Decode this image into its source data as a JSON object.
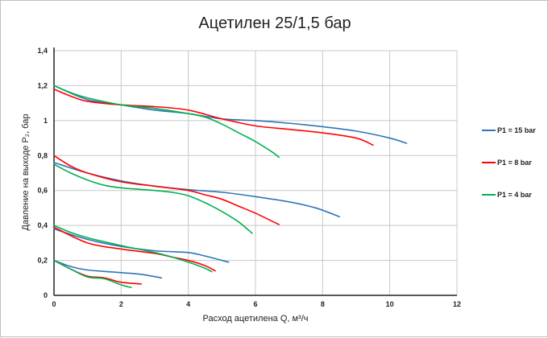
{
  "chart_data": {
    "type": "line",
    "title": "Ацетилен 25/1,5 бар",
    "xlabel": "Расход ацетилена Q, м³/ч",
    "ylabel": "Давление на выходе P₂, бар",
    "xlim": [
      0,
      12
    ],
    "ylim": [
      0,
      1.4
    ],
    "x_ticks": [
      "0",
      "2",
      "4",
      "6",
      "8",
      "10",
      "12"
    ],
    "y_ticks": [
      "0",
      "0,2",
      "0,4",
      "0,6",
      "0,8",
      "1",
      "1,2",
      "1,4"
    ],
    "grid": true,
    "legend_position": "right",
    "series": [
      {
        "name": "P1 = 15 bar",
        "color": "#2e75b6",
        "curves": [
          [
            [
              0,
              1.2
            ],
            [
              1,
              1.12
            ],
            [
              2,
              1.09
            ],
            [
              3,
              1.06
            ],
            [
              4,
              1.04
            ],
            [
              5,
              1.01
            ],
            [
              6,
              1.0
            ],
            [
              7,
              0.985
            ],
            [
              8,
              0.965
            ],
            [
              9,
              0.94
            ],
            [
              10,
              0.9
            ],
            [
              10.5,
              0.87
            ]
          ],
          [
            [
              0,
              0.76
            ],
            [
              1,
              0.7
            ],
            [
              2,
              0.655
            ],
            [
              3,
              0.625
            ],
            [
              4,
              0.605
            ],
            [
              5,
              0.59
            ],
            [
              6,
              0.565
            ],
            [
              7,
              0.535
            ],
            [
              7.8,
              0.5
            ],
            [
              8.5,
              0.45
            ]
          ],
          [
            [
              0,
              0.38
            ],
            [
              1,
              0.32
            ],
            [
              2,
              0.28
            ],
            [
              3,
              0.255
            ],
            [
              4,
              0.245
            ],
            [
              4.5,
              0.225
            ],
            [
              5.2,
              0.19
            ]
          ],
          [
            [
              0,
              0.2
            ],
            [
              0.5,
              0.165
            ],
            [
              1,
              0.145
            ],
            [
              2,
              0.13
            ],
            [
              2.6,
              0.12
            ],
            [
              3.2,
              0.1
            ]
          ]
        ]
      },
      {
        "name": "P1 = 8 bar",
        "color": "#ff0000",
        "curves": [
          [
            [
              0,
              1.18
            ],
            [
              0.5,
              1.14
            ],
            [
              1,
              1.11
            ],
            [
              2,
              1.09
            ],
            [
              3,
              1.08
            ],
            [
              4,
              1.06
            ],
            [
              5,
              1.01
            ],
            [
              6,
              0.97
            ],
            [
              7,
              0.95
            ],
            [
              8,
              0.93
            ],
            [
              9,
              0.9
            ],
            [
              9.5,
              0.86
            ]
          ],
          [
            [
              0,
              0.8
            ],
            [
              0.5,
              0.74
            ],
            [
              1,
              0.7
            ],
            [
              2,
              0.65
            ],
            [
              3,
              0.625
            ],
            [
              4,
              0.6
            ],
            [
              4.5,
              0.575
            ],
            [
              5,
              0.55
            ],
            [
              5.5,
              0.51
            ],
            [
              6,
              0.47
            ],
            [
              6.7,
              0.405
            ]
          ],
          [
            [
              0,
              0.39
            ],
            [
              1,
              0.3
            ],
            [
              2,
              0.265
            ],
            [
              3,
              0.24
            ],
            [
              3.5,
              0.22
            ],
            [
              4,
              0.2
            ],
            [
              4.5,
              0.17
            ],
            [
              4.8,
              0.14
            ]
          ],
          [
            [
              0,
              0.2
            ],
            [
              0.5,
              0.15
            ],
            [
              1,
              0.11
            ],
            [
              1.5,
              0.1
            ],
            [
              2,
              0.075
            ],
            [
              2.6,
              0.065
            ]
          ]
        ]
      },
      {
        "name": "P1 = 4 bar",
        "color": "#00b050",
        "curves": [
          [
            [
              0,
              1.2
            ],
            [
              0.5,
              1.16
            ],
            [
              1,
              1.13
            ],
            [
              2,
              1.09
            ],
            [
              3,
              1.07
            ],
            [
              4,
              1.04
            ],
            [
              4.5,
              1.02
            ],
            [
              5,
              0.98
            ],
            [
              5.5,
              0.93
            ],
            [
              6,
              0.88
            ],
            [
              6.5,
              0.82
            ],
            [
              6.7,
              0.79
            ]
          ],
          [
            [
              0,
              0.75
            ],
            [
              0.5,
              0.7
            ],
            [
              1,
              0.66
            ],
            [
              1.5,
              0.63
            ],
            [
              2,
              0.615
            ],
            [
              3,
              0.6
            ],
            [
              3.5,
              0.59
            ],
            [
              4,
              0.57
            ],
            [
              4.5,
              0.53
            ],
            [
              5,
              0.48
            ],
            [
              5.5,
              0.42
            ],
            [
              5.9,
              0.355
            ]
          ],
          [
            [
              0,
              0.4
            ],
            [
              0.5,
              0.36
            ],
            [
              1,
              0.33
            ],
            [
              2,
              0.285
            ],
            [
              3,
              0.245
            ],
            [
              3.5,
              0.22
            ],
            [
              4,
              0.19
            ],
            [
              4.5,
              0.155
            ],
            [
              4.7,
              0.135
            ]
          ],
          [
            [
              0,
              0.2
            ],
            [
              0.5,
              0.15
            ],
            [
              1,
              0.105
            ],
            [
              1.5,
              0.095
            ],
            [
              2,
              0.06
            ],
            [
              2.3,
              0.045
            ]
          ]
        ]
      }
    ]
  }
}
